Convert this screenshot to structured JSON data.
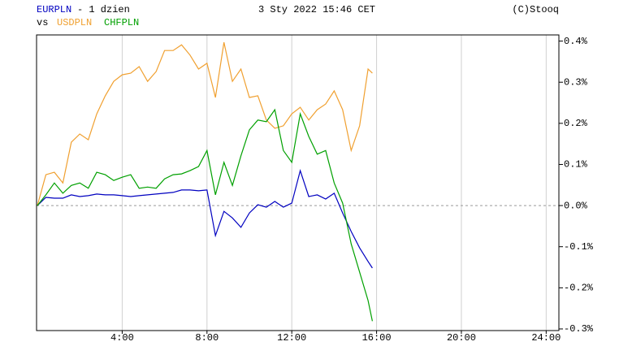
{
  "chart_data": {
    "type": "line",
    "title": "- 1 dzien",
    "subtitle": "3 Sty 2022 15:46 CET",
    "credit": "(C)Stooq",
    "vs_label": "vs",
    "x": [
      0,
      0.4,
      0.8,
      1.2,
      1.6,
      2.0,
      2.4,
      2.8,
      3.2,
      3.6,
      4.0,
      4.4,
      4.8,
      5.2,
      5.6,
      6.0,
      6.4,
      6.8,
      7.2,
      7.6,
      8.0,
      8.4,
      8.8,
      9.2,
      9.6,
      10.0,
      10.4,
      10.8,
      11.2,
      11.6,
      12.0,
      12.4,
      12.8,
      13.2,
      13.6,
      14.0,
      14.4,
      14.8,
      15.2,
      15.6,
      15.8
    ],
    "series": [
      {
        "name": "EURPLN",
        "color": "#0000c0",
        "values": [
          0,
          0.02,
          0.018,
          0.018,
          0.026,
          0.022,
          0.024,
          0.028,
          0.026,
          0.026,
          0.024,
          0.022,
          0.024,
          0.026,
          0.028,
          0.03,
          0.032,
          0.038,
          0.038,
          0.036,
          0.038,
          -0.073,
          -0.014,
          -0.03,
          -0.053,
          -0.018,
          0.002,
          -0.004,
          0.01,
          -0.004,
          0.006,
          0.085,
          0.022,
          0.026,
          0.016,
          0.03,
          -0.018,
          -0.063,
          -0.103,
          -0.136,
          -0.152
        ]
      },
      {
        "name": "USDPLN",
        "color": "#f0a030",
        "values": [
          0,
          0.075,
          0.081,
          0.055,
          0.154,
          0.174,
          0.16,
          0.223,
          0.267,
          0.302,
          0.318,
          0.322,
          0.338,
          0.302,
          0.326,
          0.377,
          0.377,
          0.391,
          0.366,
          0.332,
          0.346,
          0.263,
          0.397,
          0.302,
          0.332,
          0.263,
          0.267,
          0.208,
          0.188,
          0.194,
          0.223,
          0.239,
          0.208,
          0.233,
          0.247,
          0.279,
          0.233,
          0.134,
          0.194,
          0.332,
          0.322
        ]
      },
      {
        "name": "CHFPLN",
        "color": "#00a000",
        "values": [
          0,
          0.026,
          0.055,
          0.03,
          0.049,
          0.055,
          0.042,
          0.081,
          0.075,
          0.061,
          0.069,
          0.075,
          0.042,
          0.045,
          0.042,
          0.065,
          0.075,
          0.077,
          0.085,
          0.095,
          0.134,
          0.026,
          0.105,
          0.049,
          0.121,
          0.184,
          0.208,
          0.204,
          0.233,
          0.134,
          0.105,
          0.223,
          0.168,
          0.125,
          0.134,
          0.055,
          0.006,
          -0.093,
          -0.162,
          -0.231,
          -0.281
        ]
      }
    ],
    "xlim": [
      -0.04,
      24.6
    ],
    "xticks": [
      {
        "value": 4,
        "label": "4:00"
      },
      {
        "value": 8,
        "label": "8:00"
      },
      {
        "value": 12,
        "label": "12:00"
      },
      {
        "value": 16,
        "label": "16:00"
      },
      {
        "value": 20,
        "label": "20:00"
      },
      {
        "value": 24,
        "label": "24:00"
      }
    ],
    "ylim": [
      -0.304,
      0.415
    ],
    "yticks": [
      {
        "value": 0.4,
        "label": "0.4%"
      },
      {
        "value": 0.3,
        "label": "0.3%"
      },
      {
        "value": 0.2,
        "label": "0.2%"
      },
      {
        "value": 0.1,
        "label": "0.1%"
      },
      {
        "value": 0,
        "label": "0.0%"
      },
      {
        "value": -0.1,
        "label": "-0.1%"
      },
      {
        "value": -0.2,
        "label": "-0.2%"
      },
      {
        "value": -0.3,
        "label": "-0.3%"
      }
    ],
    "grid": true
  }
}
